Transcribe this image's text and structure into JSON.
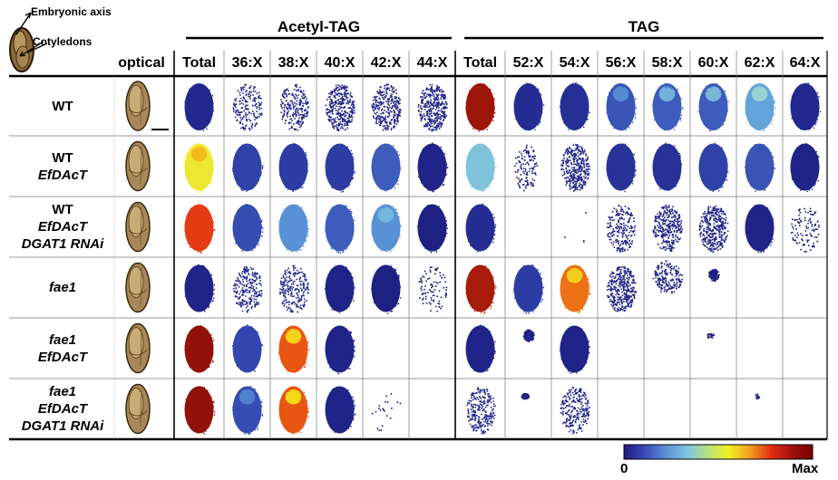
{
  "annotations": {
    "embryonic_axis": "Embryonic axis",
    "cotyledons": "Cotyledons"
  },
  "groups": {
    "acetyl": "Acetyl-TAG",
    "tag": "TAG"
  },
  "optical_header": "optical",
  "columns": [
    {
      "key": "a_total",
      "label": "Total"
    },
    {
      "key": "a36",
      "label": "36:X"
    },
    {
      "key": "a38",
      "label": "38:X"
    },
    {
      "key": "a40",
      "label": "40:X"
    },
    {
      "key": "a42",
      "label": "42:X"
    },
    {
      "key": "a44",
      "label": "44:X"
    },
    {
      "key": "t_total",
      "label": "Total"
    },
    {
      "key": "t52",
      "label": "52:X"
    },
    {
      "key": "t54",
      "label": "54:X"
    },
    {
      "key": "t56",
      "label": "56:X"
    },
    {
      "key": "t58",
      "label": "58:X"
    },
    {
      "key": "t60",
      "label": "60:X"
    },
    {
      "key": "t62",
      "label": "62:X"
    },
    {
      "key": "t64",
      "label": "64:X"
    }
  ],
  "rows": [
    {
      "lines": [
        {
          "text": "WT",
          "italic": false
        }
      ]
    },
    {
      "lines": [
        {
          "text": "WT",
          "italic": false
        },
        {
          "text": "EfDAcT",
          "italic": true
        }
      ]
    },
    {
      "lines": [
        {
          "text": "WT",
          "italic": false
        },
        {
          "text": "EfDAcT",
          "italic": true
        },
        {
          "text": "DGAT1 RNAi",
          "italic": true
        }
      ]
    },
    {
      "lines": [
        {
          "text": "fae1",
          "italic": true
        }
      ]
    },
    {
      "lines": [
        {
          "text": "fae1",
          "italic": true
        },
        {
          "text": "EfDAcT",
          "italic": true
        }
      ]
    },
    {
      "lines": [
        {
          "text": "fae1",
          "italic": true
        },
        {
          "text": "EfDAcT",
          "italic": true
        },
        {
          "text": "DGAT1 RNAi",
          "italic": true
        }
      ]
    }
  ],
  "colorbar": {
    "min_label": "0",
    "max_label": "Max",
    "stops": [
      "#1e1a80",
      "#3a4cb8",
      "#5c8fd4",
      "#7cc4e4",
      "#b8e080",
      "#f0f020",
      "#f0a020",
      "#e03010",
      "#a01010",
      "#7a0000"
    ]
  },
  "color_stops": [
    [
      0.0,
      "#15106a"
    ],
    [
      0.12,
      "#22288e"
    ],
    [
      0.25,
      "#3448b0"
    ],
    [
      0.38,
      "#4c7ccc"
    ],
    [
      0.48,
      "#6cb4e0"
    ],
    [
      0.58,
      "#9cd8d0"
    ],
    [
      0.66,
      "#d8ec70"
    ],
    [
      0.74,
      "#f4e81c"
    ],
    [
      0.82,
      "#f4a41c"
    ],
    [
      0.9,
      "#e43c10"
    ],
    [
      1.0,
      "#7e0606"
    ]
  ],
  "heatmap_values": [
    [
      {
        "base": 0.12,
        "density": 1
      },
      {
        "base": 0.1,
        "density": 0.45
      },
      {
        "base": 0.1,
        "density": 0.55
      },
      {
        "base": 0.08,
        "density": 0.8
      },
      {
        "base": 0.07,
        "density": 0.7
      },
      {
        "base": 0.08,
        "density": 0.85
      },
      {
        "base": 0.97,
        "density": 1
      },
      {
        "base": 0.14,
        "density": 1
      },
      {
        "base": 0.15,
        "density": 1
      },
      {
        "base": 0.28,
        "density": 1,
        "hot": 0.42
      },
      {
        "base": 0.3,
        "density": 1,
        "hot": 0.5
      },
      {
        "base": 0.3,
        "density": 1,
        "hot": 0.52
      },
      {
        "base": 0.45,
        "density": 1,
        "hot": 0.58
      },
      {
        "base": 0.12,
        "density": 1
      }
    ],
    [
      {
        "base": 0.72,
        "density": 1,
        "hot": 0.8
      },
      {
        "base": 0.22,
        "density": 1
      },
      {
        "base": 0.2,
        "density": 1
      },
      {
        "base": 0.2,
        "density": 1
      },
      {
        "base": 0.3,
        "density": 1
      },
      {
        "base": 0.1,
        "density": 0.95
      },
      {
        "base": 0.52,
        "density": 1
      },
      {
        "base": 0.06,
        "density": 0.3,
        "sparse": "left"
      },
      {
        "base": 0.09,
        "density": 0.85
      },
      {
        "base": 0.16,
        "density": 1
      },
      {
        "base": 0.16,
        "density": 1
      },
      {
        "base": 0.22,
        "density": 1
      },
      {
        "base": 0.28,
        "density": 1
      },
      {
        "base": 0.1,
        "density": 0.95
      }
    ],
    [
      {
        "base": 0.9,
        "density": 1
      },
      {
        "base": 0.26,
        "density": 1
      },
      {
        "base": 0.42,
        "density": 1
      },
      {
        "base": 0.3,
        "density": 1
      },
      {
        "base": 0.42,
        "density": 1,
        "hot": 0.5
      },
      {
        "base": 0.08,
        "density": 0.95
      },
      {
        "base": 0.14,
        "density": 1
      },
      {
        "base": 0.0,
        "density": 0
      },
      {
        "base": 0.02,
        "density": 0.01
      },
      {
        "base": 0.06,
        "density": 0.5
      },
      {
        "base": 0.08,
        "density": 0.75
      },
      {
        "base": 0.08,
        "density": 0.85
      },
      {
        "base": 0.1,
        "density": 0.95
      },
      {
        "base": 0.05,
        "density": 0.25
      }
    ],
    [
      {
        "base": 0.1,
        "density": 0.95
      },
      {
        "base": 0.1,
        "density": 0.55
      },
      {
        "base": 0.1,
        "density": 0.55
      },
      {
        "base": 0.1,
        "density": 0.9
      },
      {
        "base": 0.08,
        "density": 0.95
      },
      {
        "base": 0.04,
        "density": 0.22
      },
      {
        "base": 0.96,
        "density": 1
      },
      {
        "base": 0.2,
        "density": 1
      },
      {
        "base": 0.86,
        "density": 1,
        "hot": 0.76
      },
      {
        "base": 0.08,
        "density": 0.85
      },
      {
        "base": 0.07,
        "density": 0.45,
        "sparse": "top"
      },
      {
        "base": 0.06,
        "density": 0.35,
        "sparse": "topsmall"
      },
      {
        "base": 0.0,
        "density": 0
      },
      {
        "base": 0.0,
        "density": 0
      }
    ],
    [
      {
        "base": 0.98,
        "density": 1
      },
      {
        "base": 0.24,
        "density": 1
      },
      {
        "base": 0.88,
        "density": 1,
        "hot": 0.75
      },
      {
        "base": 0.1,
        "density": 1
      },
      {
        "base": 0.0,
        "density": 0
      },
      {
        "base": 0.0,
        "density": 0
      },
      {
        "base": 0.1,
        "density": 1
      },
      {
        "base": 0.08,
        "density": 0.5,
        "sparse": "topsmall"
      },
      {
        "base": 0.1,
        "density": 1
      },
      {
        "base": 0.0,
        "density": 0
      },
      {
        "base": 0.0,
        "density": 0
      },
      {
        "base": 0.05,
        "density": 0.05,
        "sparse": "dot"
      },
      {
        "base": 0.0,
        "density": 0
      },
      {
        "base": 0.0,
        "density": 0
      }
    ],
    [
      {
        "base": 0.98,
        "density": 1
      },
      {
        "base": 0.26,
        "density": 1,
        "hot": 0.4
      },
      {
        "base": 0.88,
        "density": 1,
        "hot": 0.74
      },
      {
        "base": 0.1,
        "density": 1
      },
      {
        "base": 0.04,
        "density": 0.05
      },
      {
        "base": 0.0,
        "density": 0
      },
      {
        "base": 0.1,
        "density": 0.6
      },
      {
        "base": 0.08,
        "density": 0.4,
        "sparse": "dot"
      },
      {
        "base": 0.1,
        "density": 0.6
      },
      {
        "base": 0.0,
        "density": 0
      },
      {
        "base": 0.0,
        "density": 0
      },
      {
        "base": 0.0,
        "density": 0
      },
      {
        "base": 0.04,
        "density": 0.03,
        "sparse": "dot"
      },
      {
        "base": 0.0,
        "density": 0
      }
    ]
  ]
}
